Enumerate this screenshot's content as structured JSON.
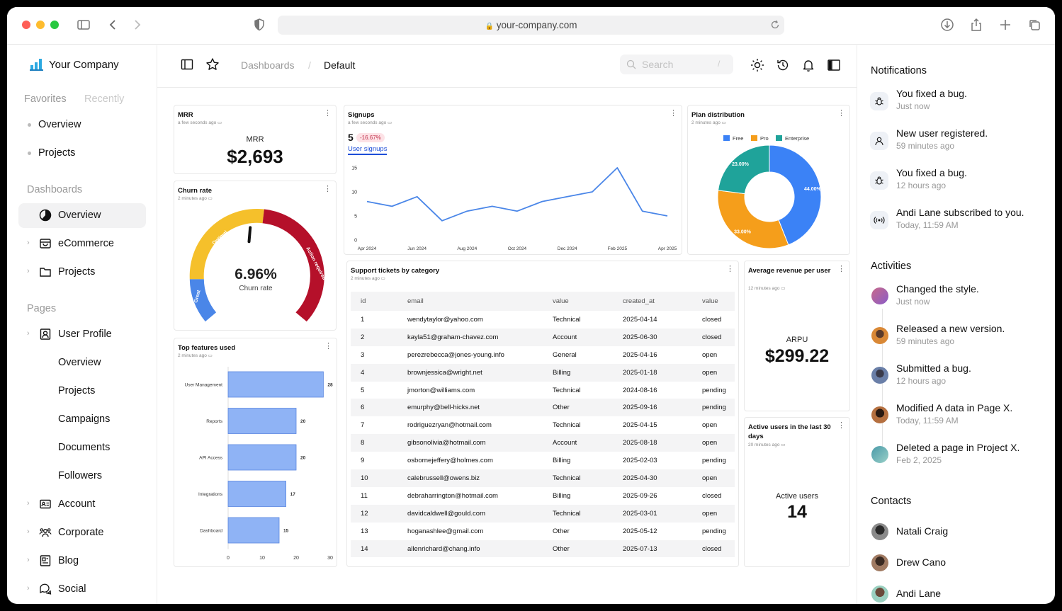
{
  "browser": {
    "url": "your-company.com"
  },
  "sidebar": {
    "brand": "Your Company",
    "tabs": [
      "Favorites",
      "Recently"
    ],
    "favorites": [
      "Overview",
      "Projects"
    ],
    "dashboards_heading": "Dashboards",
    "dashboards": [
      "Overview",
      "eCommerce",
      "Projects"
    ],
    "pages_heading": "Pages",
    "user_profile": "User Profile",
    "user_profile_children": [
      "Overview",
      "Projects",
      "Campaigns",
      "Documents",
      "Followers"
    ],
    "pages": [
      "Account",
      "Corporate",
      "Blog",
      "Social"
    ]
  },
  "topbar": {
    "breadcrumb_root": "Dashboards",
    "breadcrumb_sep": "/",
    "breadcrumb_current": "Default",
    "search_placeholder": "Search",
    "search_shortcut": "/"
  },
  "cards": {
    "mrr": {
      "title": "MRR",
      "sub": "a few seconds ago",
      "label": "MRR",
      "value": "$2,693"
    },
    "churn": {
      "title": "Churn rate",
      "sub": "2 minutes ago",
      "value": "6.96%",
      "label": "Churn rate",
      "segments": [
        "Great",
        "Optimal",
        "Action required"
      ]
    },
    "signups": {
      "title": "Signups",
      "sub": "a few seconds ago",
      "value": "5",
      "delta": "-16.67%",
      "series_label": "User signups"
    },
    "plan": {
      "title": "Plan distribution",
      "sub": "2 minutes ago"
    },
    "features": {
      "title": "Top features used",
      "sub": "2 minutes ago"
    },
    "tickets": {
      "title": "Support tickets by category",
      "sub": "2 minutes ago"
    },
    "arpu": {
      "title": "Average revenue per user",
      "sub": "12 minutes ago",
      "label": "ARPU",
      "value": "$299.22"
    },
    "active": {
      "title": "Active users in the last 30 days",
      "sub": "20 minutes ago",
      "label": "Active users",
      "value": "14"
    }
  },
  "tickets": {
    "columns": [
      "id",
      "email",
      "value",
      "created_at",
      "value"
    ],
    "rows": [
      [
        "1",
        "wendytaylor@yahoo.com",
        "Technical",
        "2025-04-14",
        "closed"
      ],
      [
        "2",
        "kayla51@graham-chavez.com",
        "Account",
        "2025-06-30",
        "closed"
      ],
      [
        "3",
        "perezrebecca@jones-young.info",
        "General",
        "2025-04-16",
        "open"
      ],
      [
        "4",
        "brownjessica@wright.net",
        "Billing",
        "2025-01-18",
        "open"
      ],
      [
        "5",
        "jmorton@williams.com",
        "Technical",
        "2024-08-16",
        "pending"
      ],
      [
        "6",
        "emurphy@bell-hicks.net",
        "Other",
        "2025-09-16",
        "pending"
      ],
      [
        "7",
        "rodriguezryan@hotmail.com",
        "Technical",
        "2025-04-15",
        "open"
      ],
      [
        "8",
        "gibsonolivia@hotmail.com",
        "Account",
        "2025-08-18",
        "open"
      ],
      [
        "9",
        "osbornejeffery@holmes.com",
        "Billing",
        "2025-02-03",
        "pending"
      ],
      [
        "10",
        "calebrussell@owens.biz",
        "Technical",
        "2025-04-30",
        "open"
      ],
      [
        "11",
        "debraharrington@hotmail.com",
        "Billing",
        "2025-09-26",
        "closed"
      ],
      [
        "12",
        "davidcaldwell@gould.com",
        "Technical",
        "2025-03-01",
        "open"
      ],
      [
        "13",
        "hoganashlee@gmail.com",
        "Other",
        "2025-05-12",
        "pending"
      ],
      [
        "14",
        "allenrichard@chang.info",
        "Other",
        "2025-07-13",
        "closed"
      ]
    ]
  },
  "chart_data": [
    {
      "type": "line",
      "title": "Signups",
      "x": [
        "Apr 2024",
        "May 2024",
        "Jun 2024",
        "Jul 2024",
        "Aug 2024",
        "Sep 2024",
        "Oct 2024",
        "Nov 2024",
        "Dec 2024",
        "Jan 2025",
        "Feb 2025",
        "Mar 2025",
        "Apr 2025"
      ],
      "x_ticks": [
        "Apr 2024",
        "Jun 2024",
        "Aug 2024",
        "Oct 2024",
        "Dec 2024",
        "Feb 2025",
        "Apr 2025"
      ],
      "series": [
        {
          "name": "User signups",
          "values": [
            8,
            7,
            9,
            4,
            6,
            7,
            6,
            8,
            9,
            10,
            15,
            6,
            5
          ]
        }
      ],
      "ylim": [
        0,
        15
      ],
      "y_ticks": [
        0,
        5,
        10,
        15
      ],
      "color": "#4a86e8"
    },
    {
      "type": "pie",
      "title": "Plan distribution",
      "categories": [
        "Free",
        "Pro",
        "Enterprise"
      ],
      "values": [
        44.0,
        33.0,
        23.0
      ],
      "labels": [
        "44.00%",
        "33.00%",
        "23.00%"
      ],
      "colors": [
        "#3b82f6",
        "#f59e1b",
        "#1fa39a"
      ],
      "legend": "top"
    },
    {
      "type": "bar",
      "title": "Top features used",
      "orientation": "horizontal",
      "categories": [
        "User Management",
        "Reports",
        "API Access",
        "Integrations",
        "Dashboard"
      ],
      "values": [
        28,
        20,
        20,
        17,
        15
      ],
      "xlim": [
        0,
        30
      ],
      "x_ticks": [
        0,
        10,
        20,
        30
      ],
      "color": "#8fb3f5"
    },
    {
      "type": "gauge",
      "title": "Churn rate",
      "value": 6.96,
      "segments": [
        "Great",
        "Optimal",
        "Action required"
      ],
      "colors": [
        "#4a86e8",
        "#f5c02b",
        "#b5102a"
      ]
    }
  ],
  "notifications": {
    "heading": "Notifications",
    "items": [
      {
        "icon": "bug-icon",
        "text": "You fixed a bug.",
        "time": "Just now"
      },
      {
        "icon": "user-icon",
        "text": "New user registered.",
        "time": "59 minutes ago"
      },
      {
        "icon": "bug-icon",
        "text": "You fixed a bug.",
        "time": "12 hours ago"
      },
      {
        "icon": "broadcast-icon",
        "text": "Andi Lane subscribed to you.",
        "time": "Today, 11:59 AM"
      }
    ]
  },
  "activities": {
    "heading": "Activities",
    "items": [
      {
        "text": "Changed the style.",
        "time": "Just now",
        "color": "#c86a8a"
      },
      {
        "text": "Released a new version.",
        "time": "59 minutes ago",
        "color": "#d98836"
      },
      {
        "text": "Submitted a bug.",
        "time": "12 hours ago",
        "color": "#6a7fa8"
      },
      {
        "text": "Modified A data in Page X.",
        "time": "Today, 11:59 AM",
        "color": "#8a4a2a"
      },
      {
        "text": "Deleted a page in Project X.",
        "time": "Feb 2, 2025",
        "color": "#4a9aa8"
      }
    ]
  },
  "contacts": {
    "heading": "Contacts",
    "items": [
      "Natali Craig",
      "Drew Cano",
      "Andi Lane"
    ]
  }
}
